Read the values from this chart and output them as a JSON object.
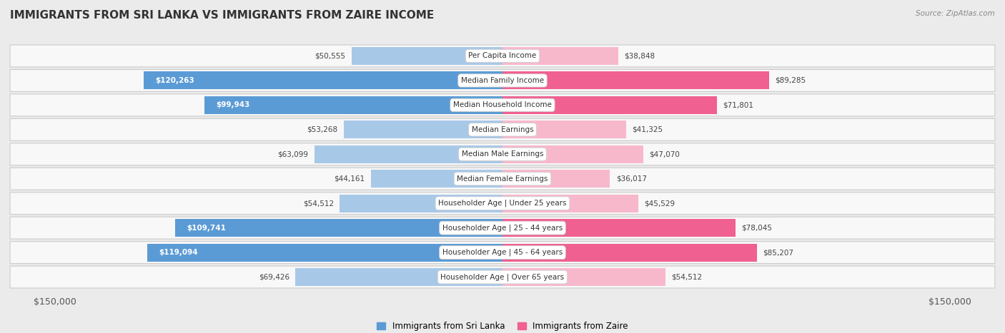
{
  "title": "IMMIGRANTS FROM SRI LANKA VS IMMIGRANTS FROM ZAIRE INCOME",
  "source": "Source: ZipAtlas.com",
  "categories": [
    "Per Capita Income",
    "Median Family Income",
    "Median Household Income",
    "Median Earnings",
    "Median Male Earnings",
    "Median Female Earnings",
    "Householder Age | Under 25 years",
    "Householder Age | 25 - 44 years",
    "Householder Age | 45 - 64 years",
    "Householder Age | Over 65 years"
  ],
  "sri_lanka_values": [
    50555,
    120263,
    99943,
    53268,
    63099,
    44161,
    54512,
    109741,
    119094,
    69426
  ],
  "zaire_values": [
    38848,
    89285,
    71801,
    41325,
    47070,
    36017,
    45529,
    78045,
    85207,
    54512
  ],
  "sri_lanka_labels": [
    "$50,555",
    "$120,263",
    "$99,943",
    "$53,268",
    "$63,099",
    "$44,161",
    "$54,512",
    "$109,741",
    "$119,094",
    "$69,426"
  ],
  "zaire_labels": [
    "$38,848",
    "$89,285",
    "$71,801",
    "$41,325",
    "$47,070",
    "$36,017",
    "$45,529",
    "$78,045",
    "$85,207",
    "$54,512"
  ],
  "sri_lanka_inside": [
    false,
    true,
    true,
    false,
    false,
    false,
    false,
    true,
    true,
    false
  ],
  "zaire_inside": [
    false,
    false,
    false,
    false,
    false,
    false,
    false,
    false,
    false,
    false
  ],
  "max_value": 150000,
  "sri_lanka_color_light": "#a8c8e8",
  "sri_lanka_color_dark": "#5b9bd5",
  "zaire_color_light": "#f8b8cc",
  "zaire_color_dark": "#f06090",
  "bg_color": "#f0f0f0",
  "legend_sri_lanka": "Immigrants from Sri Lanka",
  "legend_zaire": "Immigrants from Zaire",
  "xlabel_left": "$150,000",
  "xlabel_right": "$150,000",
  "inside_threshold": 70000
}
